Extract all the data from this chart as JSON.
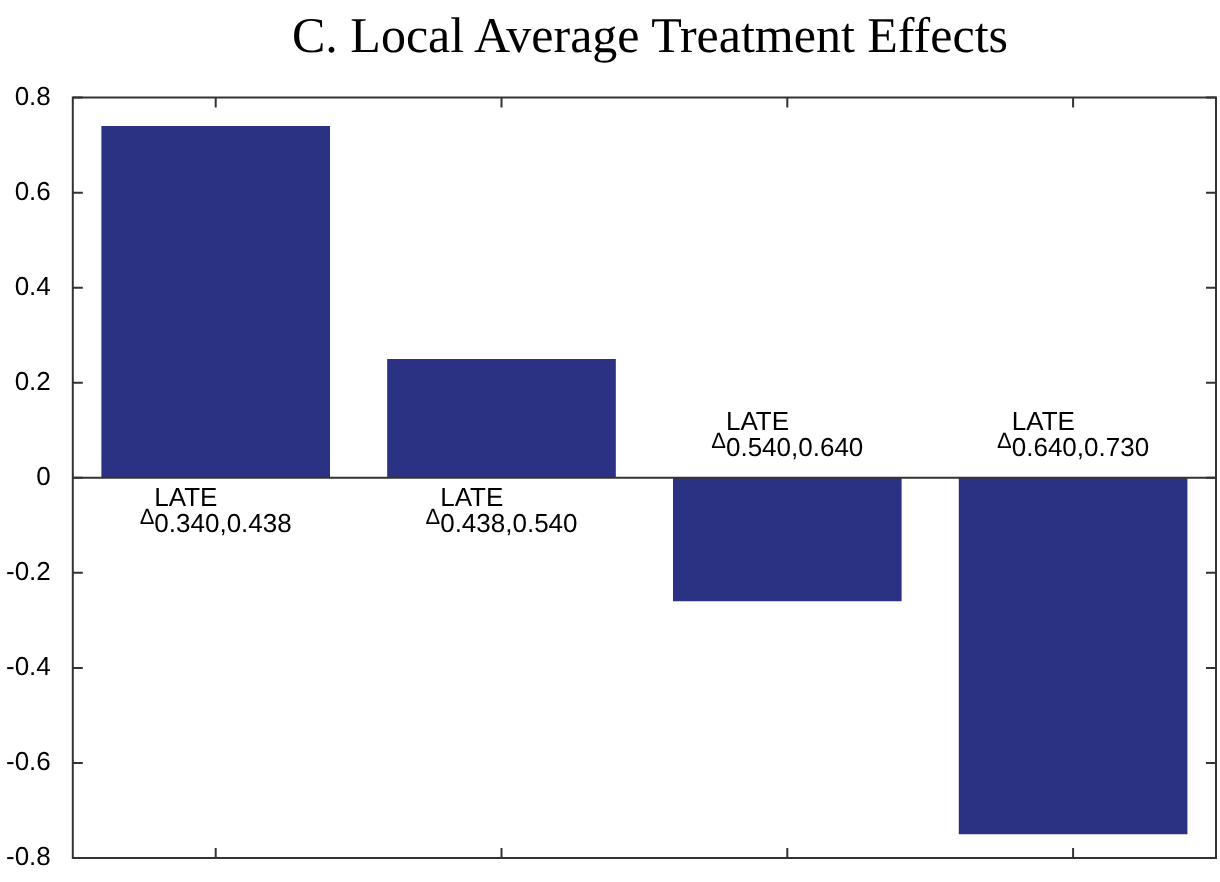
{
  "chart_data": {
    "type": "bar",
    "title": "C. Local Average Treatment Effects",
    "categories": [
      "Δ$^{LATE}$$_{0.340,0.438}$",
      "Δ$^{LATE}$$_{0.438,0.540}$",
      "Δ$^{LATE}$$_{0.540,0.640}$",
      "Δ$^{LATE}$$_{0.640,0.730}$"
    ],
    "values": [
      0.74,
      0.25,
      -0.26,
      -0.75
    ],
    "color": "#2b3183",
    "ylim": [
      -0.8,
      0.8
    ],
    "yticks": [
      -0.8,
      -0.6,
      -0.4,
      -0.2,
      0,
      0.2,
      0.4,
      0.6,
      0.8
    ],
    "legend": false
  }
}
